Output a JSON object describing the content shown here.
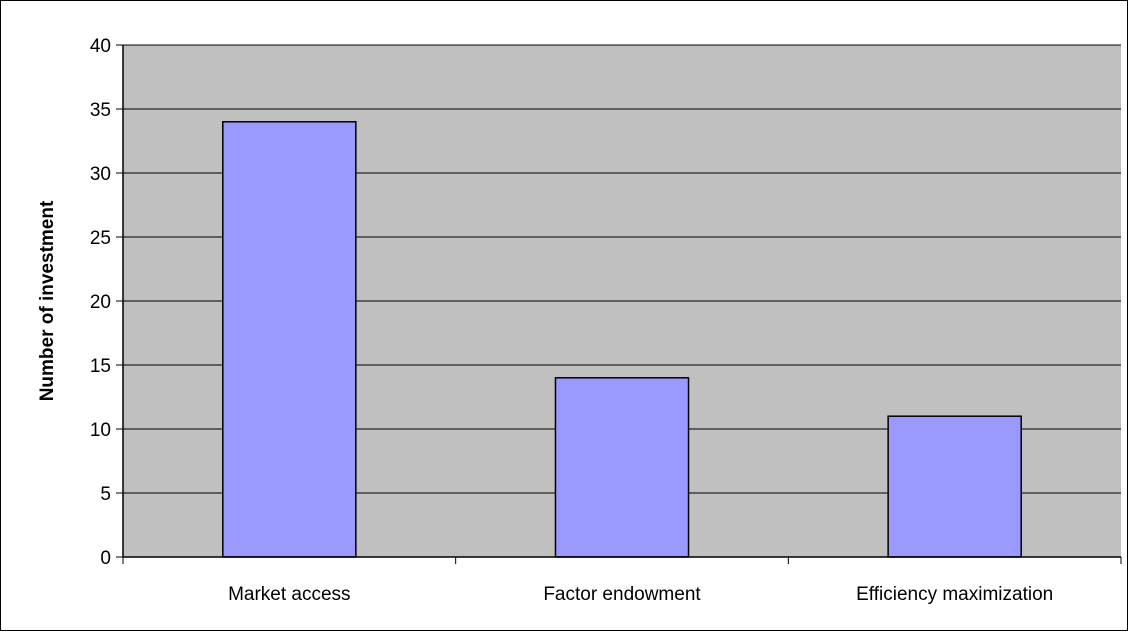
{
  "chart_data": {
    "type": "bar",
    "title": "",
    "xlabel": "",
    "ylabel": "Number of investment",
    "categories": [
      "Market access",
      "Factor endowment",
      "Efficiency maximization"
    ],
    "values": [
      34,
      14,
      11
    ],
    "ylim": [
      0,
      40
    ],
    "yticks": [
      0,
      5,
      10,
      15,
      20,
      25,
      30,
      35,
      40
    ],
    "grid": true,
    "legend": "none",
    "colors": {
      "bar_fill": "#9999ff",
      "bar_stroke": "#000000",
      "plot_background": "#c0c0c0",
      "gridline": "#000000"
    }
  }
}
